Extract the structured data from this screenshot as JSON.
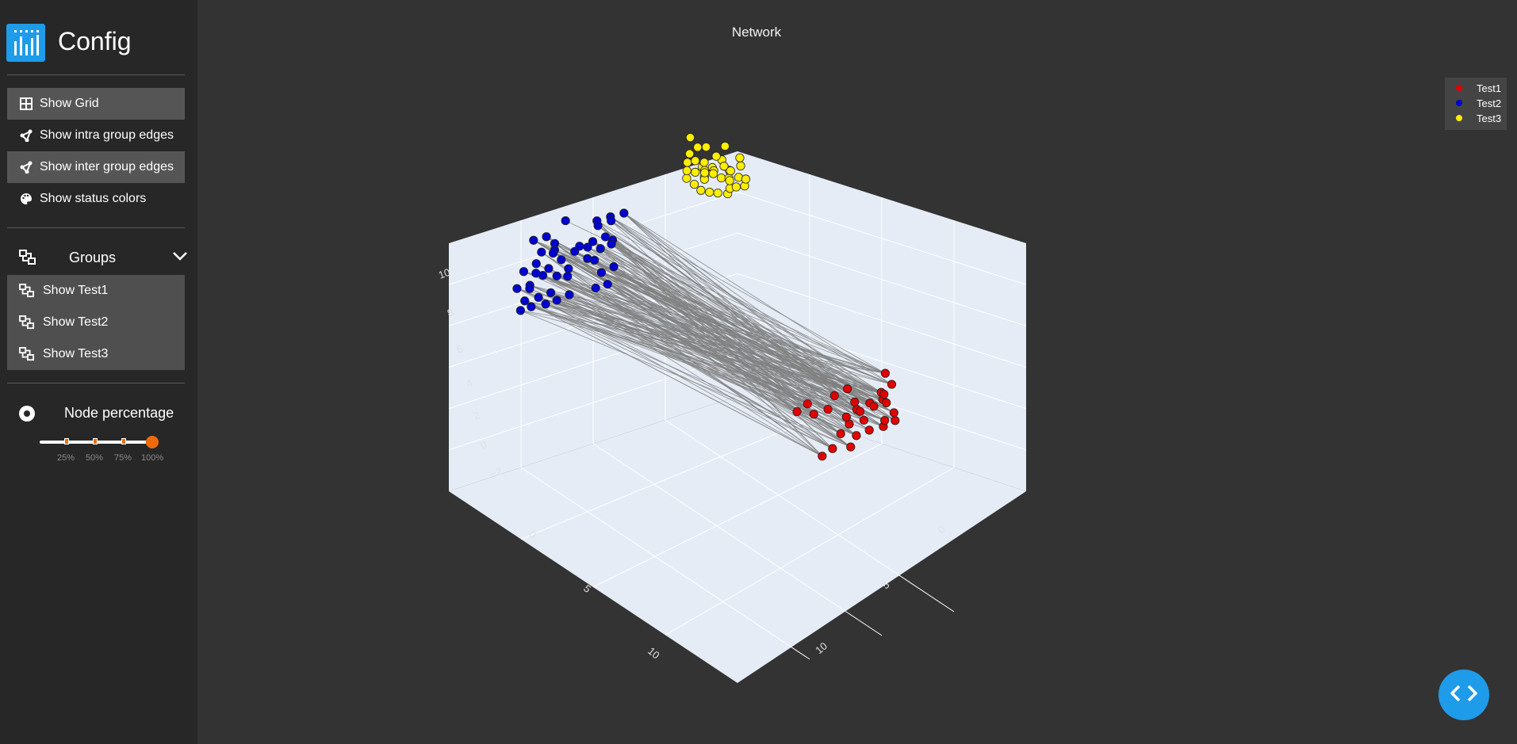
{
  "app": {
    "title": "Config"
  },
  "sidebar": {
    "toggles": [
      {
        "label": "Show Grid",
        "icon": "grid-icon",
        "active": true
      },
      {
        "label": "Show intra group edges",
        "icon": "share-icon",
        "active": false
      },
      {
        "label": "Show inter group edges",
        "icon": "share-icon",
        "active": true
      },
      {
        "label": "Show status colors",
        "icon": "palette-icon",
        "active": false
      }
    ],
    "groups": {
      "title": "Groups",
      "items": [
        {
          "label": "Show Test1",
          "icon": "group-icon"
        },
        {
          "label": "Show Test2",
          "icon": "group-icon"
        },
        {
          "label": "Show Test3",
          "icon": "group-icon"
        }
      ]
    },
    "node_percentage": {
      "title": "Node percentage",
      "value": 1.0,
      "ticks": [
        "25%",
        "50%",
        "75%",
        "100%"
      ]
    }
  },
  "chart_data": {
    "type": "scatter",
    "title": "Network",
    "series": [
      {
        "name": "Test1",
        "color": "#e00000"
      },
      {
        "name": "Test2",
        "color": "#0000d0"
      },
      {
        "name": "Test3",
        "color": "#ffee00"
      }
    ],
    "z_ticks": [
      "10",
      "8",
      "6",
      "4",
      "2",
      "0",
      "−2"
    ],
    "x_ticks": [
      "0",
      "5",
      "10"
    ],
    "y_ticks": [
      "0",
      "5",
      "10"
    ],
    "grid": true,
    "legend_position": "top-right",
    "scene_background": "#e5ecf6",
    "edge_color": "#808080"
  },
  "colors": {
    "accent": "#1e9be9",
    "slider": "#f06a0c"
  }
}
